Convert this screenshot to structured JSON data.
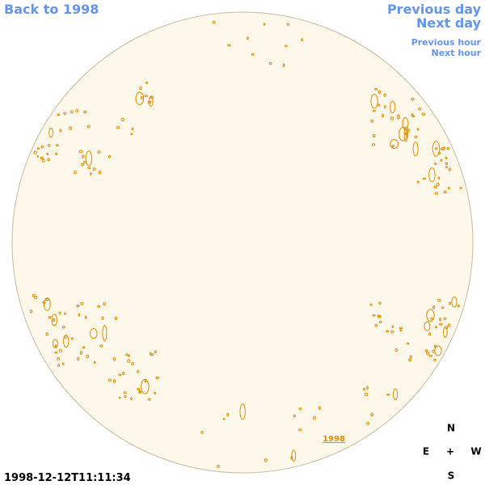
{
  "navigation": {
    "back": "Back to 1998",
    "previous_day": "Previous day",
    "next_day": "Next day",
    "previous_hour": "Previous hour",
    "next_hour": "Next hour"
  },
  "image": {
    "year_link": "1998",
    "timestamp": "1998-12-12T11:11:34"
  },
  "compass": {
    "north": "N",
    "east": "E",
    "center": "+",
    "west": "W",
    "south": "S"
  }
}
